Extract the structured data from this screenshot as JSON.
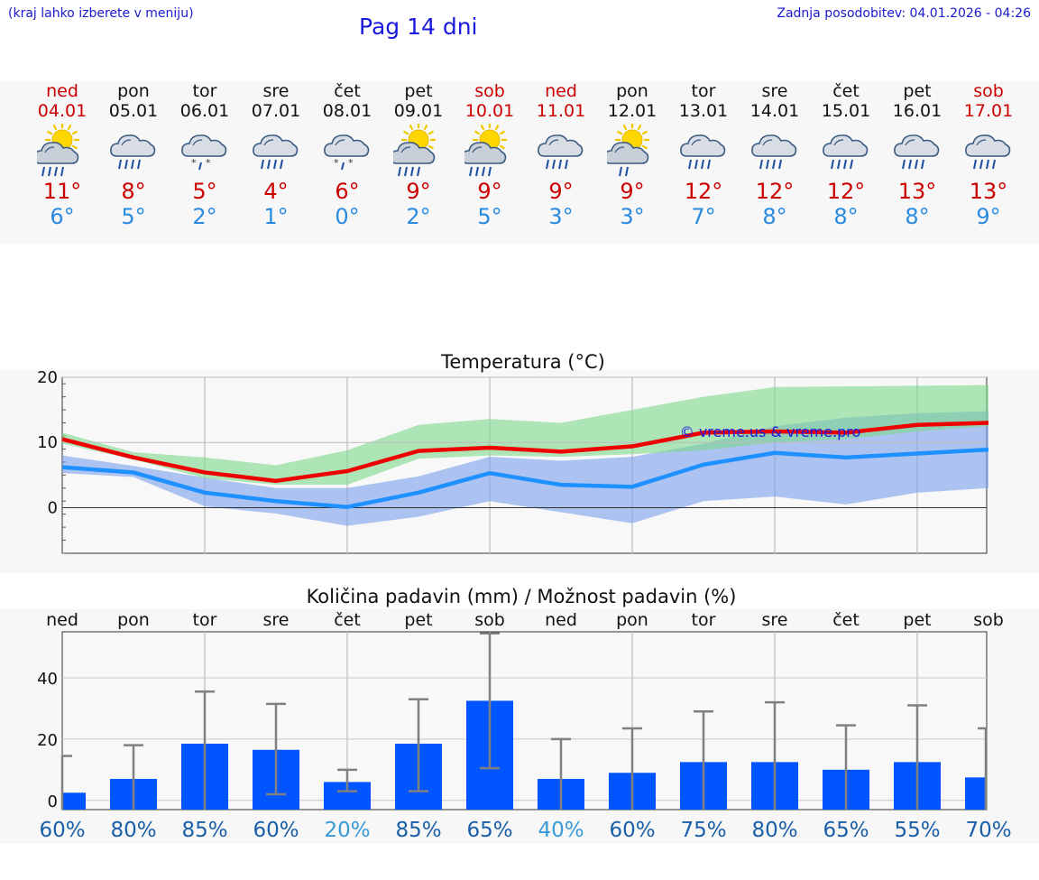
{
  "header": {
    "left_note": "(kraj lahko izberete v meniju)",
    "title": "Pag 14 dni",
    "updated": "Zadnja posodobitev: 04.01.2026 - 04:26"
  },
  "colors": {
    "weekend": "#cc0000",
    "tmax": "#cc0000",
    "tmin": "#2a8ae0",
    "bar": "#0055ff",
    "red_line": "#ee0000",
    "blue_line": "#1e90ff",
    "green_band": "#7bd88b",
    "blue_band": "#7aa0ee"
  },
  "days": [
    {
      "name": "ned",
      "date": "04.01",
      "tmax": "11°",
      "tmin": "6°",
      "weekend": true,
      "icon": "sun-cloud-rain-icon"
    },
    {
      "name": "pon",
      "date": "05.01",
      "tmax": "8°",
      "tmin": "5°",
      "weekend": false,
      "icon": "cloud-rain-icon"
    },
    {
      "name": "tor",
      "date": "06.01",
      "tmax": "5°",
      "tmin": "2°",
      "weekend": false,
      "icon": "cloud-sleet-icon"
    },
    {
      "name": "sre",
      "date": "07.01",
      "tmax": "4°",
      "tmin": "1°",
      "weekend": false,
      "icon": "cloud-rain-icon"
    },
    {
      "name": "čet",
      "date": "08.01",
      "tmax": "6°",
      "tmin": "0°",
      "weekend": false,
      "icon": "cloud-sleet-icon"
    },
    {
      "name": "pet",
      "date": "09.01",
      "tmax": "9°",
      "tmin": "2°",
      "weekend": false,
      "icon": "sun-cloud-rain-icon"
    },
    {
      "name": "sob",
      "date": "10.01",
      "tmax": "9°",
      "tmin": "5°",
      "weekend": true,
      "icon": "sun-cloud-rain-icon"
    },
    {
      "name": "ned",
      "date": "11.01",
      "tmax": "9°",
      "tmin": "3°",
      "weekend": true,
      "icon": "cloud-rain-icon"
    },
    {
      "name": "pon",
      "date": "12.01",
      "tmax": "9°",
      "tmin": "3°",
      "weekend": false,
      "icon": "sun-cloud-drizzle-icon"
    },
    {
      "name": "tor",
      "date": "13.01",
      "tmax": "12°",
      "tmin": "7°",
      "weekend": false,
      "icon": "cloud-rain-icon"
    },
    {
      "name": "sre",
      "date": "14.01",
      "tmax": "12°",
      "tmin": "8°",
      "weekend": false,
      "icon": "cloud-rain-icon"
    },
    {
      "name": "čet",
      "date": "15.01",
      "tmax": "12°",
      "tmin": "8°",
      "weekend": false,
      "icon": "cloud-rain-icon"
    },
    {
      "name": "pet",
      "date": "16.01",
      "tmax": "13°",
      "tmin": "8°",
      "weekend": false,
      "icon": "cloud-rain-icon"
    },
    {
      "name": "sob",
      "date": "17.01",
      "tmax": "13°",
      "tmin": "9°",
      "weekend": true,
      "icon": "cloud-rain-icon"
    }
  ],
  "chart_data": [
    {
      "type": "line",
      "title": "Temperatura (°C)",
      "watermark": "© vreme.us & vreme.pro",
      "x": [
        0,
        1,
        2,
        3,
        4,
        5,
        6,
        7,
        8,
        9,
        10,
        11,
        12,
        13
      ],
      "ylim": [
        -7,
        20
      ],
      "yticks": [
        "0",
        "10",
        "20"
      ],
      "ytick_values": [
        0,
        10,
        20
      ],
      "series": [
        {
          "name": "max",
          "values": [
            10.5,
            7.7,
            5.4,
            4.1,
            5.6,
            8.7,
            9.2,
            8.6,
            9.4,
            11.5,
            11.7,
            11.5,
            12.7,
            13.0
          ]
        },
        {
          "name": "min",
          "values": [
            6.2,
            5.4,
            2.3,
            1.0,
            0.1,
            2.3,
            5.3,
            3.5,
            3.2,
            6.6,
            8.4,
            7.7,
            8.3,
            8.9
          ]
        }
      ],
      "bands": [
        {
          "name": "max_range",
          "upper": [
            11.5,
            8.5,
            7.7,
            6.5,
            8.8,
            12.7,
            13.6,
            13.0,
            15.0,
            17.0,
            18.5,
            18.6,
            18.7,
            18.8
          ],
          "lower": [
            9.8,
            7.4,
            4.5,
            3.5,
            3.5,
            7.5,
            8.0,
            7.8,
            8.2,
            8.8,
            10.0,
            10.5,
            11.7,
            12.5
          ]
        },
        {
          "name": "min_range",
          "upper": [
            8.0,
            6.4,
            4.6,
            3.0,
            3.0,
            4.8,
            7.8,
            7.2,
            7.8,
            9.8,
            12.5,
            13.8,
            14.5,
            14.8
          ],
          "lower": [
            5.3,
            4.7,
            0.2,
            -0.9,
            -2.8,
            -1.4,
            1.0,
            -0.7,
            -2.4,
            1.0,
            1.7,
            0.5,
            2.3,
            3.0
          ]
        }
      ]
    },
    {
      "type": "bar",
      "title": "Količina padavin (mm) / Možnost padavin (%)",
      "categories": [
        "ned",
        "pon",
        "tor",
        "sre",
        "čet",
        "pet",
        "sob",
        "ned",
        "pon",
        "tor",
        "sre",
        "čet",
        "pet",
        "sob"
      ],
      "values": [
        2.5,
        7,
        18.5,
        16.5,
        6,
        18.5,
        32.5,
        7,
        9,
        12.5,
        12.5,
        10,
        12.5,
        7.5
      ],
      "err_high": [
        14.5,
        18,
        35.5,
        31.5,
        10,
        33,
        54.5,
        20,
        23.5,
        29,
        32,
        24.5,
        31,
        23.5
      ],
      "err_low": [
        0,
        0,
        0,
        2,
        3,
        3,
        10.5,
        0,
        0,
        0,
        0,
        0,
        0,
        0
      ],
      "ylim": [
        -3,
        55
      ],
      "yticks": [
        "0",
        "20",
        "40"
      ],
      "ytick_values": [
        0,
        20,
        40
      ],
      "probability": [
        "60%",
        "80%",
        "85%",
        "60%",
        "20%",
        "85%",
        "65%",
        "40%",
        "60%",
        "75%",
        "80%",
        "65%",
        "55%",
        "70%"
      ]
    }
  ]
}
